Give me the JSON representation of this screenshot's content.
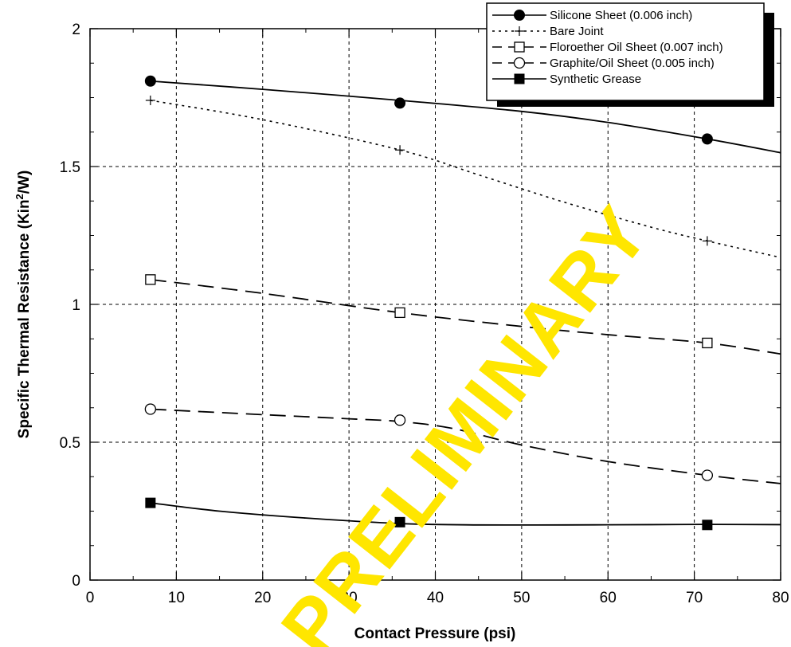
{
  "chart_data": {
    "type": "line",
    "xlabel": "Contact Pressure (psi)",
    "ylabel_main": "Specific Thermal Resistance (Kin",
    "ylabel_sup": "2",
    "ylabel_tail": "/W)",
    "xlim": [
      0,
      80
    ],
    "ylim": [
      0,
      2
    ],
    "xticks": [
      "0",
      "10",
      "20",
      "30",
      "40",
      "50",
      "60",
      "70",
      "80"
    ],
    "yticks": [
      "0",
      "0.5",
      "1",
      "1.5",
      "2"
    ],
    "grid": true,
    "legend_position": "top-right",
    "watermark": "PRELIMINARY",
    "series": [
      {
        "name": "Silicone Sheet (0.006 inch)",
        "marker": "filled-circle",
        "line": "solid",
        "x": [
          7,
          35.9,
          71.5
        ],
        "y": [
          1.81,
          1.73,
          1.6
        ],
        "curve_x": [
          7,
          20,
          35.9,
          50,
          60,
          71.5,
          80
        ],
        "curve_y": [
          1.81,
          1.78,
          1.74,
          1.7,
          1.66,
          1.6,
          1.55
        ]
      },
      {
        "name": "Bare Joint",
        "marker": "plus",
        "line": "dotted",
        "x": [
          7,
          35.9,
          71.5
        ],
        "y": [
          1.74,
          1.56,
          1.23
        ],
        "curve_x": [
          7,
          20,
          35.9,
          45,
          55,
          65,
          71.5,
          80
        ],
        "curve_y": [
          1.74,
          1.67,
          1.56,
          1.47,
          1.37,
          1.28,
          1.23,
          1.17
        ]
      },
      {
        "name": "Floroether Oil Sheet (0.007 inch)",
        "marker": "open-square",
        "line": "dashed",
        "x": [
          7,
          35.9,
          71.5
        ],
        "y": [
          1.09,
          0.97,
          0.86
        ],
        "curve_x": [
          7,
          20,
          35.9,
          50,
          60,
          71.5,
          80
        ],
        "curve_y": [
          1.09,
          1.04,
          0.97,
          0.92,
          0.89,
          0.86,
          0.82
        ]
      },
      {
        "name": "Graphite/Oil Sheet (0.005 inch)",
        "marker": "open-circle",
        "line": "dashed",
        "x": [
          7,
          35.9,
          71.5
        ],
        "y": [
          0.62,
          0.58,
          0.38
        ],
        "curve_x": [
          7,
          20,
          30,
          35.9,
          42,
          50,
          60,
          71.5,
          80
        ],
        "curve_y": [
          0.62,
          0.6,
          0.585,
          0.575,
          0.55,
          0.49,
          0.43,
          0.38,
          0.35
        ]
      },
      {
        "name": "Synthetic Grease",
        "marker": "filled-square",
        "line": "solid",
        "x": [
          7,
          35.9,
          71.5
        ],
        "y": [
          0.28,
          0.21,
          0.2
        ],
        "curve_x": [
          7,
          15,
          25,
          35.9,
          45,
          55,
          65,
          71.5,
          80
        ],
        "curve_y": [
          0.28,
          0.25,
          0.225,
          0.205,
          0.2,
          0.2,
          0.201,
          0.202,
          0.201
        ]
      }
    ]
  }
}
